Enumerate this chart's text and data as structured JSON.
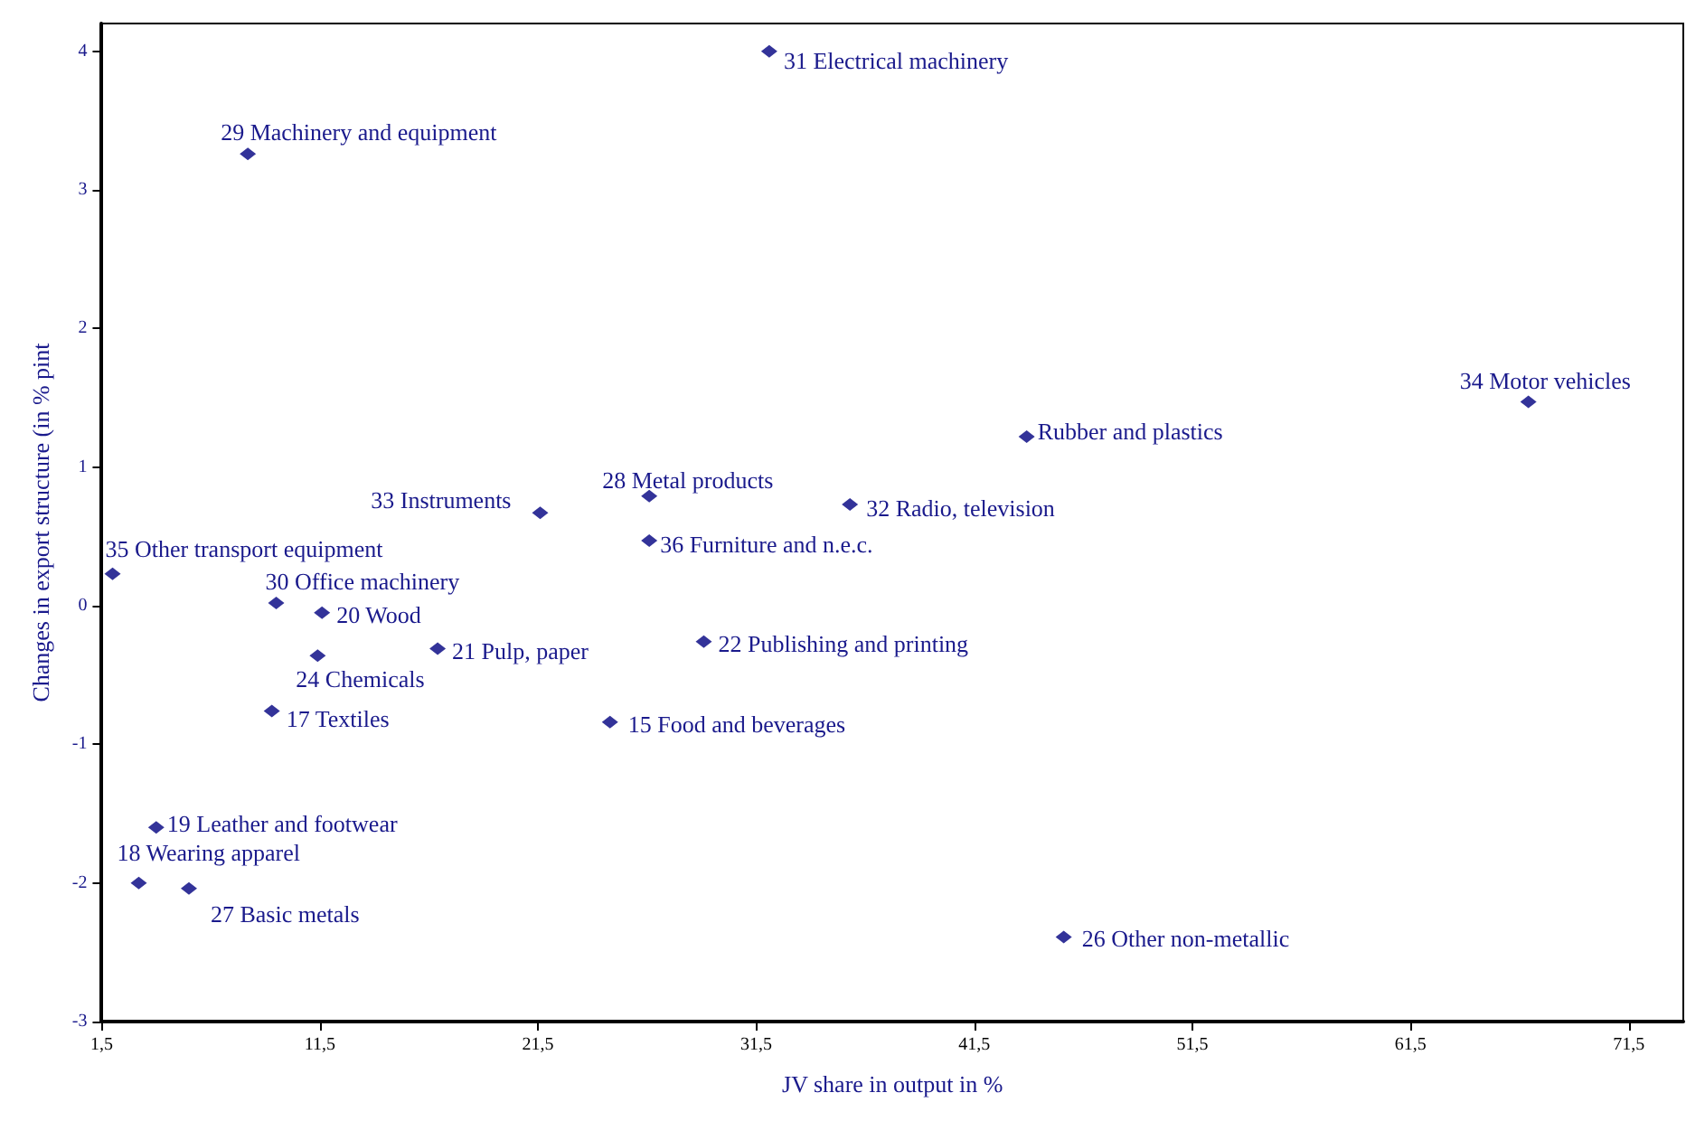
{
  "chart_data": {
    "type": "scatter",
    "xlabel": "JV share in output in %",
    "ylabel": "Changes in export structure (in % pint",
    "xlim": [
      1.5,
      74
    ],
    "ylim": [
      -3,
      4.2
    ],
    "xticks": [
      {
        "value": 1.5,
        "label": "1,5"
      },
      {
        "value": 11.5,
        "label": "11,5"
      },
      {
        "value": 21.5,
        "label": "21,5"
      },
      {
        "value": 31.5,
        "label": "31,5"
      },
      {
        "value": 41.5,
        "label": "41,5"
      },
      {
        "value": 51.5,
        "label": "51,5"
      },
      {
        "value": 61.5,
        "label": "61,5"
      },
      {
        "value": 71.5,
        "label": "71,5"
      }
    ],
    "yticks": [
      -3,
      -2,
      -1,
      0,
      1,
      2,
      3,
      4
    ],
    "grid": false,
    "marker": "diamond",
    "series": [
      {
        "color": "#00007f",
        "x": [
          32.1,
          8.2,
          66.9,
          43.9,
          21.6,
          26.6,
          35.8,
          26.6,
          2.0,
          9.5,
          11.6,
          11.4,
          16.9,
          29.1,
          9.3,
          24.8,
          4.0,
          3.2,
          5.5,
          45.6
        ],
        "values": [
          4.0,
          3.26,
          1.47,
          1.22,
          0.67,
          0.79,
          0.73,
          0.47,
          0.23,
          0.02,
          -0.05,
          -0.36,
          -0.31,
          -0.26,
          -0.76,
          -0.84,
          -1.6,
          -2.0,
          -2.04,
          -2.39
        ]
      }
    ],
    "annotations": [
      {
        "text": "31 Electrical machinery",
        "x": 32.1,
        "y": 4.0
      },
      {
        "text": "29 Machinery and equipment",
        "x": 8.2,
        "y": 3.26
      },
      {
        "text": "34 Motor vehicles",
        "x": 66.9,
        "y": 1.47
      },
      {
        "text": "Rubber and plastics",
        "x": 43.9,
        "y": 1.22
      },
      {
        "text": "33 Instruments",
        "x": 21.6,
        "y": 0.67
      },
      {
        "text": "28 Metal products",
        "x": 26.6,
        "y": 0.79
      },
      {
        "text": "32 Radio, television",
        "x": 35.8,
        "y": 0.73
      },
      {
        "text": "36 Furniture and n.e.c.",
        "x": 26.6,
        "y": 0.47
      },
      {
        "text": "35 Other transport equipment",
        "x": 2.0,
        "y": 0.23
      },
      {
        "text": "30 Office machinery",
        "x": 9.5,
        "y": 0.02
      },
      {
        "text": "20 Wood",
        "x": 11.6,
        "y": -0.05
      },
      {
        "text": "24 Chemicals",
        "x": 11.4,
        "y": -0.36
      },
      {
        "text": "21 Pulp, paper",
        "x": 16.9,
        "y": -0.31
      },
      {
        "text": "22 Publishing and printing",
        "x": 29.1,
        "y": -0.26
      },
      {
        "text": "17 Textiles",
        "x": 9.3,
        "y": -0.76
      },
      {
        "text": "15 Food and beverages",
        "x": 24.8,
        "y": -0.84
      },
      {
        "text": "19 Leather and footwear",
        "x": 4.0,
        "y": -1.6
      },
      {
        "text": "18 Wearing apparel",
        "x": 3.2,
        "y": -2.0
      },
      {
        "text": "27 Basic metals",
        "x": 5.5,
        "y": -2.04
      },
      {
        "text": "26 Other non-metallic",
        "x": 45.6,
        "y": -2.39
      }
    ]
  }
}
